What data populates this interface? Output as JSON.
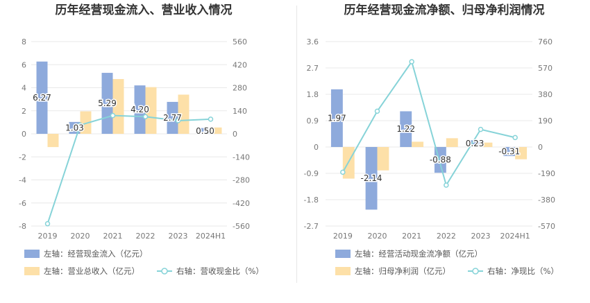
{
  "charts": [
    {
      "title": "历年经营现金流入、营业收入情况",
      "type": "bar",
      "categories": [
        "2019",
        "2020",
        "2021",
        "2022",
        "2023",
        "2024H1"
      ],
      "left_axis": {
        "ticks": [
          8,
          6,
          4,
          2,
          0,
          -2,
          -4,
          -6,
          -8
        ],
        "min": -8,
        "max": 8
      },
      "right_axis": {
        "ticks": [
          560,
          420,
          280,
          140,
          0,
          -140,
          -280,
          -420,
          -560
        ],
        "min": -560,
        "max": 560
      },
      "series": [
        {
          "name": "左轴：经营现金流入（亿元）",
          "axis": "left",
          "kind": "bar",
          "color": "#8eaadc",
          "values": [
            6.27,
            1.03,
            5.29,
            4.2,
            2.77,
            0.5
          ],
          "labels": [
            "6.27",
            "1.03",
            "5.29",
            "4.20",
            "2.77",
            "0.50"
          ]
        },
        {
          "name": "左轴：营业总收入（亿元）",
          "axis": "left",
          "kind": "bar",
          "color": "#fde0a8",
          "values": [
            -1.15,
            1.95,
            4.75,
            4.05,
            3.4,
            0.55
          ]
        },
        {
          "name": "右轴：营收现金比（%）",
          "axis": "right",
          "kind": "line",
          "color": "#86d3d8",
          "values": [
            -546,
            53,
            111,
            104,
            80,
            89
          ]
        }
      ],
      "legend_position": "bottom"
    },
    {
      "title": "历年经营现金流净额、归母净利润情况",
      "type": "bar",
      "categories": [
        "2019",
        "2020",
        "2021",
        "2022",
        "2023",
        "2024H1"
      ],
      "left_axis": {
        "ticks": [
          3.6,
          2.7,
          1.8,
          0.9,
          0,
          -0.9,
          -1.8,
          -2.7
        ],
        "min": -2.7,
        "max": 3.6
      },
      "right_axis": {
        "ticks": [
          760,
          570,
          380,
          190,
          0,
          -190,
          -380,
          -570
        ],
        "min": -570,
        "max": 760
      },
      "series": [
        {
          "name": "左轴：经营活动现金流净额（亿元）",
          "axis": "left",
          "kind": "bar",
          "color": "#8eaadc",
          "values": [
            1.97,
            -2.14,
            1.22,
            -0.88,
            0.23,
            -0.31
          ],
          "labels": [
            "1.97",
            "-2.14",
            "1.22",
            "-0.88",
            "0.23",
            "-0.31"
          ]
        },
        {
          "name": "左轴：归母净利润（亿元）",
          "axis": "left",
          "kind": "bar",
          "color": "#fde0a8",
          "values": [
            -1.08,
            -0.8,
            0.18,
            0.3,
            0.15,
            -0.42
          ]
        },
        {
          "name": "右轴：净现比（%）",
          "axis": "right",
          "kind": "line",
          "color": "#86d3d8",
          "values": [
            -182,
            258,
            615,
            -275,
            127,
            68
          ]
        }
      ],
      "legend_position": "bottom"
    }
  ]
}
